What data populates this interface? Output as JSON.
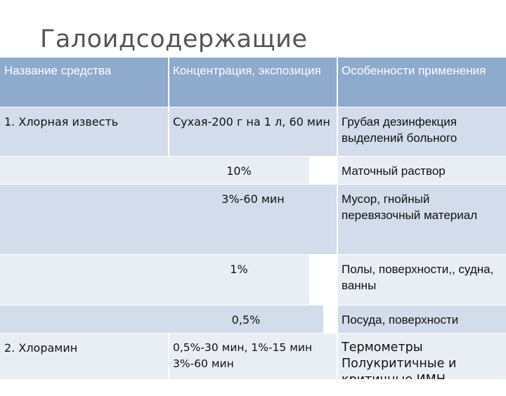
{
  "title": "Галоидсодержащие",
  "table": {
    "headers": [
      "Название средства",
      "Концентрация, экспозиция",
      "Особенности применения"
    ],
    "rows": [
      {
        "name": "1. Хлорная известь",
        "concentration": "Сухая-200 г на 1 л, 60 мин",
        "usage": "Грубая дезинфекция выделений больного"
      },
      {
        "name": "",
        "concentration": "10%",
        "usage": "Маточный раствор"
      },
      {
        "name": "",
        "concentration": "3%-60 мин",
        "usage": "Мусор, гнойный перевязочный материал"
      },
      {
        "name": "",
        "concentration": "1%",
        "usage": "Полы, поверхности,, судна, ванны"
      },
      {
        "name": "",
        "concentration": "0,5%",
        "usage": "Посуда, поверхности"
      },
      {
        "name": "2. Хлорамин",
        "concentration": "0,5%-30 мин, 1%-15 мин 3%-60 мин",
        "usage": "Термометры Полукритичные и критичные ИМН"
      }
    ]
  },
  "colors": {
    "header": "#8eaacd",
    "band_dark": "#d3dcea",
    "band_light": "#e9eef5"
  }
}
